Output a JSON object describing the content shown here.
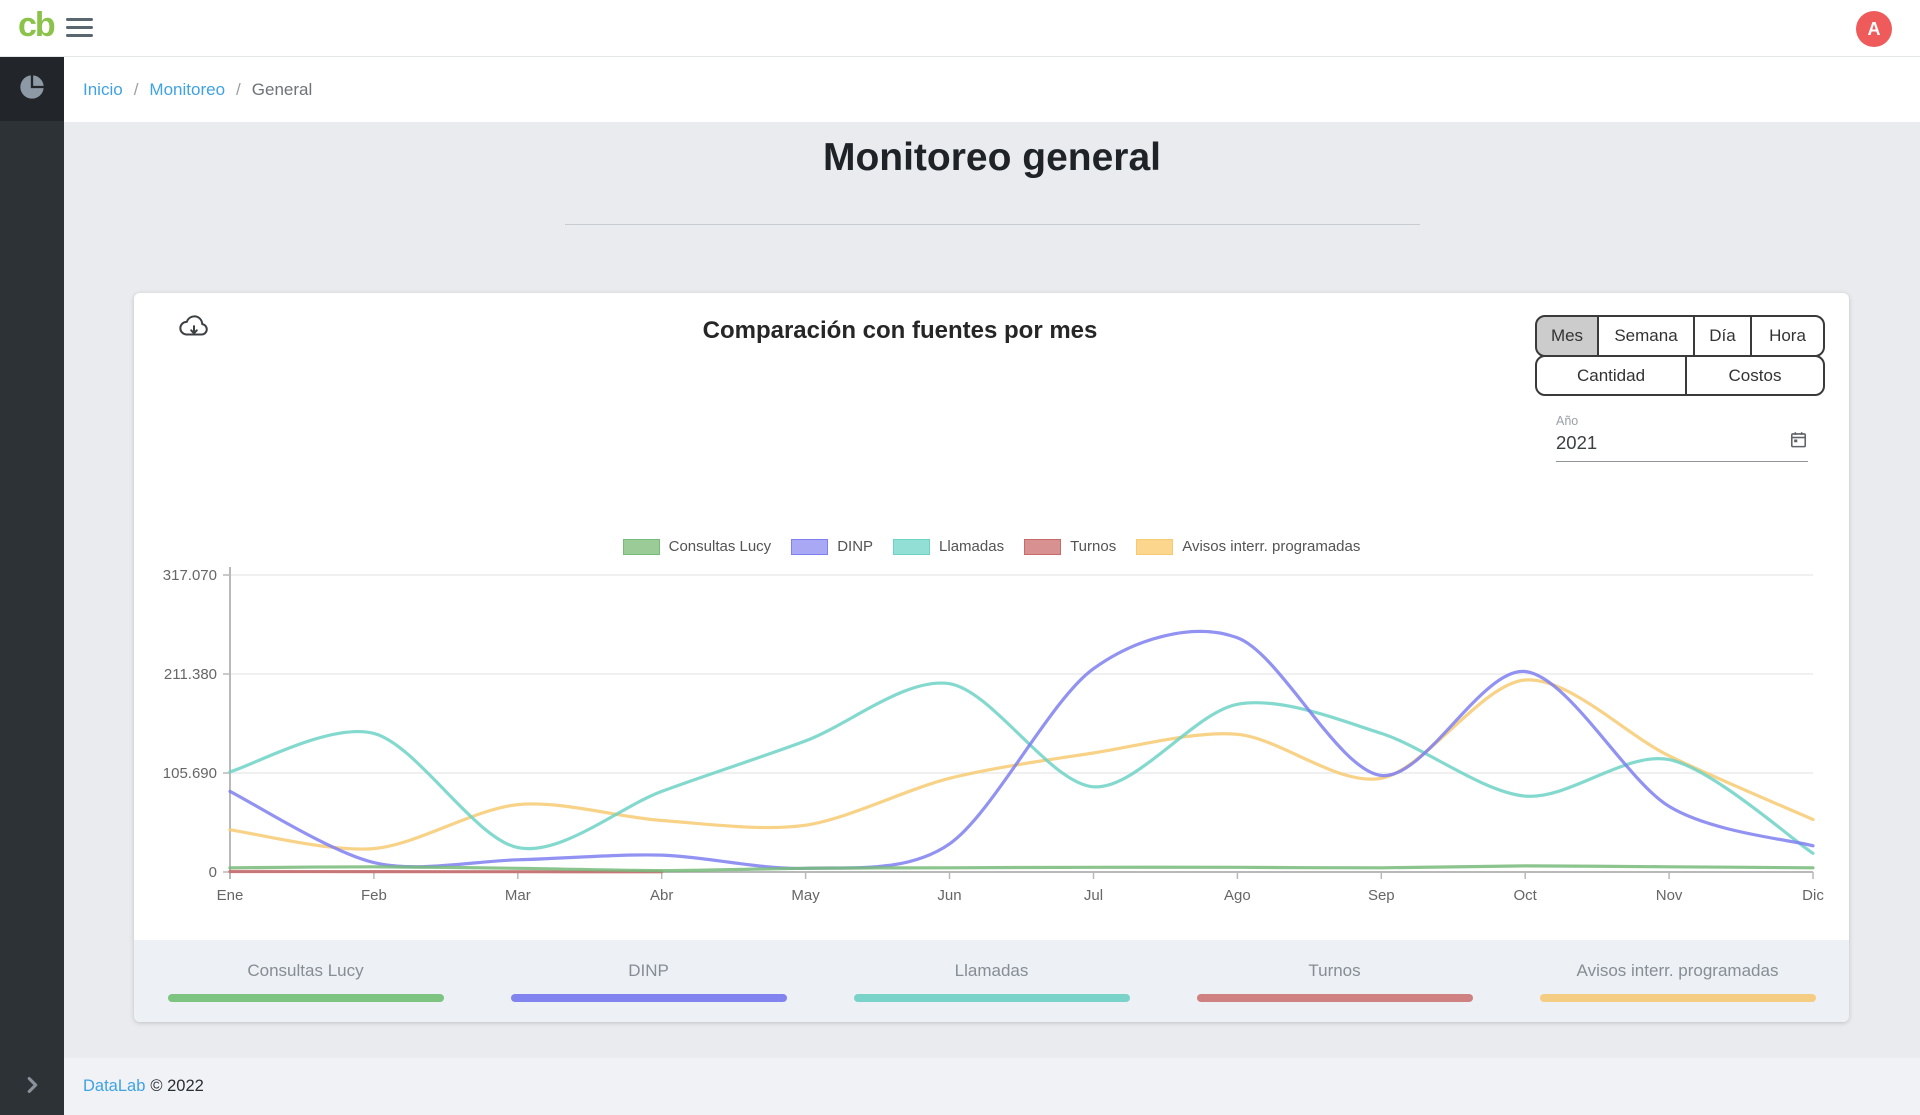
{
  "header": {
    "logo_text": "cb",
    "avatar_initial": "A"
  },
  "icons": {
    "menu": "hamburger-icon",
    "sidebar_active": "pie-chart-icon",
    "sidebar_expand": "chevron-right-icon",
    "download": "cloud-download-icon",
    "year": "calendar-icon"
  },
  "breadcrumb": {
    "separator": "/",
    "items": [
      {
        "label": "Inicio"
      },
      {
        "label": "Monitoreo"
      },
      {
        "label": "General"
      }
    ]
  },
  "page": {
    "title": "Monitoreo general"
  },
  "card": {
    "title": "Comparación con fuentes por mes",
    "period_buttons": [
      "Mes",
      "Semana",
      "Día",
      "Hora"
    ],
    "period_selected": "Mes",
    "metric_buttons": [
      "Cantidad",
      "Costos"
    ],
    "year_field": {
      "label": "Año",
      "value": "2021"
    }
  },
  "chart_data": {
    "type": "line",
    "title": "Comparación con fuentes por mes",
    "categories": [
      "Ene",
      "Feb",
      "Mar",
      "Abr",
      "May",
      "Jun",
      "Jul",
      "Ago",
      "Sep",
      "Oct",
      "Nov",
      "Dic"
    ],
    "xlabel": "",
    "ylabel": "",
    "ylim": [
      0,
      317070
    ],
    "grid": true,
    "legend_position": "top",
    "y_ticks": [
      {
        "value": 0,
        "label": "0"
      },
      {
        "value": 105690,
        "label": "105.690"
      },
      {
        "value": 211380,
        "label": "211.380"
      },
      {
        "value": 317070,
        "label": "317.070"
      }
    ],
    "series": [
      {
        "name": "Consultas Lucy",
        "color": "#77bb79",
        "fill": "#9bcb96",
        "values": [
          4500,
          5500,
          4000,
          1500,
          4000,
          4500,
          5000,
          5000,
          4500,
          6500,
          5500,
          4500
        ]
      },
      {
        "name": "DINP",
        "color": "#7e7ff0",
        "fill": "#a9a8f4",
        "values": [
          86000,
          10000,
          13000,
          18000,
          4000,
          30000,
          217000,
          250000,
          103000,
          214000,
          70000,
          28000
        ]
      },
      {
        "name": "Llamadas",
        "color": "#6fd2c6",
        "fill": "#92dfd5",
        "values": [
          107000,
          148000,
          26000,
          86000,
          140000,
          201000,
          91000,
          179000,
          148000,
          81000,
          120000,
          20000
        ]
      },
      {
        "name": "Turnos",
        "color": "#c76a6a",
        "fill": "#d89191",
        "values": [
          500,
          400,
          300,
          200,
          null,
          null,
          null,
          null,
          null,
          null,
          null,
          null
        ]
      },
      {
        "name": "Avisos interr. programadas",
        "color": "#f6ca72",
        "fill": "#fbd68c",
        "values": [
          45000,
          25000,
          72000,
          55000,
          50000,
          100000,
          127000,
          147000,
          100000,
          205000,
          124000,
          56000
        ]
      }
    ]
  },
  "bottom_legend": [
    {
      "label": "Consultas Lucy",
      "color": "#7cc47f"
    },
    {
      "label": "DINP",
      "color": "#8184ee"
    },
    {
      "label": "Llamadas",
      "color": "#79d3c9"
    },
    {
      "label": "Turnos",
      "color": "#cf8080"
    },
    {
      "label": "Avisos interr. programadas",
      "color": "#f5cd82"
    }
  ],
  "footer": {
    "link": "DataLab",
    "copyright": "© 2022"
  }
}
